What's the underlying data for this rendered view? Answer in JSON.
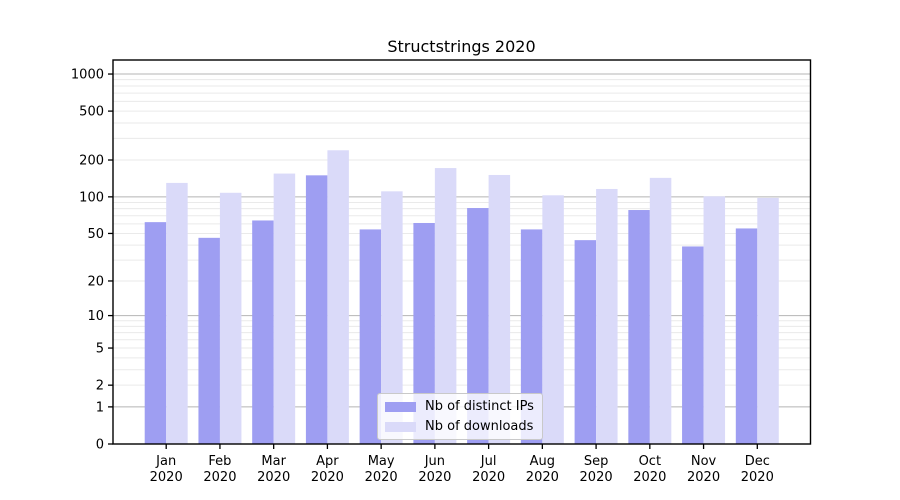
{
  "chart_data": {
    "type": "bar",
    "title": "Structstrings 2020",
    "categories": [
      "Jan 2020",
      "Feb 2020",
      "Mar 2020",
      "Apr 2020",
      "May 2020",
      "Jun 2020",
      "Jul 2020",
      "Aug 2020",
      "Sep 2020",
      "Oct 2020",
      "Nov 2020",
      "Dec 2020"
    ],
    "series": [
      {
        "id": "distinct-ips",
        "name": "Nb of distinct IPs",
        "color": "#9e9ef2",
        "values": [
          62,
          46,
          64,
          150,
          54,
          61,
          81,
          54,
          44,
          78,
          39,
          55
        ]
      },
      {
        "id": "downloads",
        "name": "Nb of downloads",
        "color": "#dadaf9",
        "values": [
          130,
          108,
          155,
          240,
          111,
          172,
          151,
          103,
          116,
          143,
          101,
          98
        ]
      }
    ],
    "yscale": "log1p",
    "y_ticks": [
      0,
      1,
      2,
      5,
      10,
      20,
      50,
      100,
      200,
      500,
      1000
    ],
    "ylim": [
      0,
      1300
    ],
    "xlabel": "",
    "ylabel": "",
    "grid": "horizontal major and log-minor gridlines",
    "legend_position": "lower center",
    "colors": {
      "major_grid": "#b4b4b4",
      "minor_grid": "#eaeaea",
      "axis": "#000000",
      "text": "#000000",
      "background": "#ffffff"
    }
  }
}
